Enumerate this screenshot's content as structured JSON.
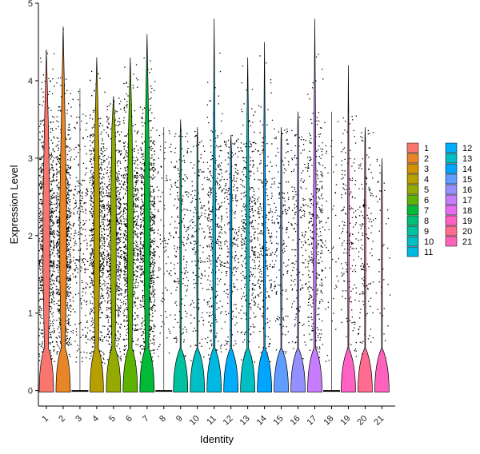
{
  "chart_data": {
    "type": "violin",
    "xlabel": "Identity",
    "ylabel": "Expression Level",
    "ylim": [
      -0.2,
      5
    ],
    "y_ticks": [
      0,
      1,
      2,
      3,
      4,
      5
    ],
    "grid": false,
    "legend_position": "right",
    "categories": [
      "1",
      "2",
      "3",
      "4",
      "5",
      "6",
      "7",
      "8",
      "9",
      "10",
      "11",
      "12",
      "13",
      "14",
      "15",
      "16",
      "17",
      "18",
      "19",
      "20",
      "21"
    ],
    "colors": [
      "#F8766D",
      "#E88526",
      "#D39200",
      "#B79F00",
      "#93AA00",
      "#5EB300",
      "#00BA38",
      "#00BF74",
      "#00C19F",
      "#00BFC4",
      "#00B9E3",
      "#00ADFA",
      "#00BFC4",
      "#00A5FF",
      "#619CFF",
      "#9590FF",
      "#C77CFF",
      "#E76BF3",
      "#FF61C3",
      "#FF6C90",
      "#FF62BC"
    ],
    "series": [
      {
        "name": "1",
        "max": 4.4,
        "density": 1.0,
        "zero_width": 0.45
      },
      {
        "name": "2",
        "max": 4.7,
        "density": 1.0,
        "zero_width": 0.45
      },
      {
        "name": "3",
        "max": 3.9,
        "density": 0.28,
        "zero_width": 0.0
      },
      {
        "name": "4",
        "max": 4.3,
        "density": 0.85,
        "zero_width": 0.42
      },
      {
        "name": "5",
        "max": 3.8,
        "density": 0.8,
        "zero_width": 0.45
      },
      {
        "name": "6",
        "max": 4.3,
        "density": 0.85,
        "zero_width": 0.45
      },
      {
        "name": "7",
        "max": 4.6,
        "density": 0.85,
        "zero_width": 0.45
      },
      {
        "name": "8",
        "max": 3.4,
        "density": 0.12,
        "zero_width": 0.0
      },
      {
        "name": "9",
        "max": 3.5,
        "density": 0.22,
        "zero_width": 0.45
      },
      {
        "name": "10",
        "max": 3.4,
        "density": 0.2,
        "zero_width": 0.45
      },
      {
        "name": "11",
        "max": 4.8,
        "density": 0.4,
        "zero_width": 0.45
      },
      {
        "name": "12",
        "max": 3.3,
        "density": 0.28,
        "zero_width": 0.45
      },
      {
        "name": "13",
        "max": 4.3,
        "density": 0.4,
        "zero_width": 0.45
      },
      {
        "name": "14",
        "max": 4.5,
        "density": 0.3,
        "zero_width": 0.45
      },
      {
        "name": "15",
        "max": 3.4,
        "density": 0.2,
        "zero_width": 0.45
      },
      {
        "name": "16",
        "max": 3.6,
        "density": 0.2,
        "zero_width": 0.45
      },
      {
        "name": "17",
        "max": 4.8,
        "density": 0.4,
        "zero_width": 0.45
      },
      {
        "name": "18",
        "max": 3.6,
        "density": 0.06,
        "zero_width": 0.0
      },
      {
        "name": "19",
        "max": 4.2,
        "density": 0.2,
        "zero_width": 0.45
      },
      {
        "name": "20",
        "max": 3.4,
        "density": 0.18,
        "zero_width": 0.45
      },
      {
        "name": "21",
        "max": 3.0,
        "density": 0.05,
        "zero_width": 0.45
      }
    ]
  }
}
